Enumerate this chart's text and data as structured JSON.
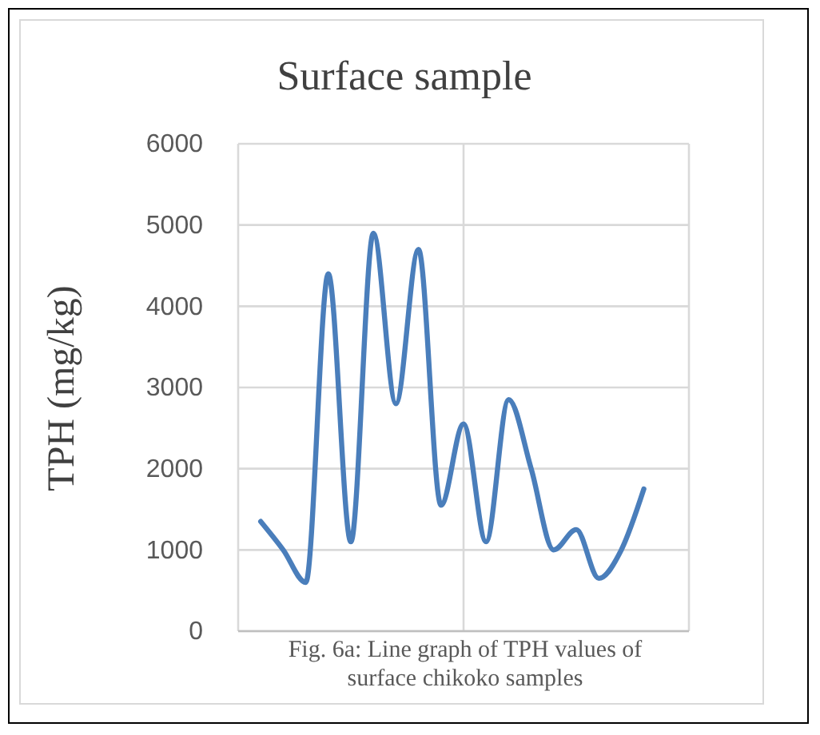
{
  "chart_data": {
    "type": "line",
    "title": "Surface sample",
    "ylabel": "TPH (mg/kg)",
    "categories": [
      null,
      null,
      null,
      null,
      null,
      null,
      null,
      null,
      null,
      null,
      null,
      null,
      null,
      null,
      null,
      null,
      null,
      null
    ],
    "series": [
      {
        "color": "#4a7ebb",
        "values": [
          1350,
          1000,
          600,
          4400,
          1100,
          4900,
          2800,
          4700,
          1550,
          2550,
          1100,
          2850,
          2000,
          1000,
          1250,
          650,
          1000,
          1750
        ]
      }
    ],
    "ylim": [
      0,
      6000
    ],
    "yticks": [
      0,
      1000,
      2000,
      3000,
      4000,
      5000,
      6000
    ],
    "grid": true,
    "tick_labels": "y",
    "marker": "none",
    "line_style": "solid",
    "annotations": [
      "Fig. 6a: Line graph of TPH values of surface chikoko samples"
    ]
  }
}
